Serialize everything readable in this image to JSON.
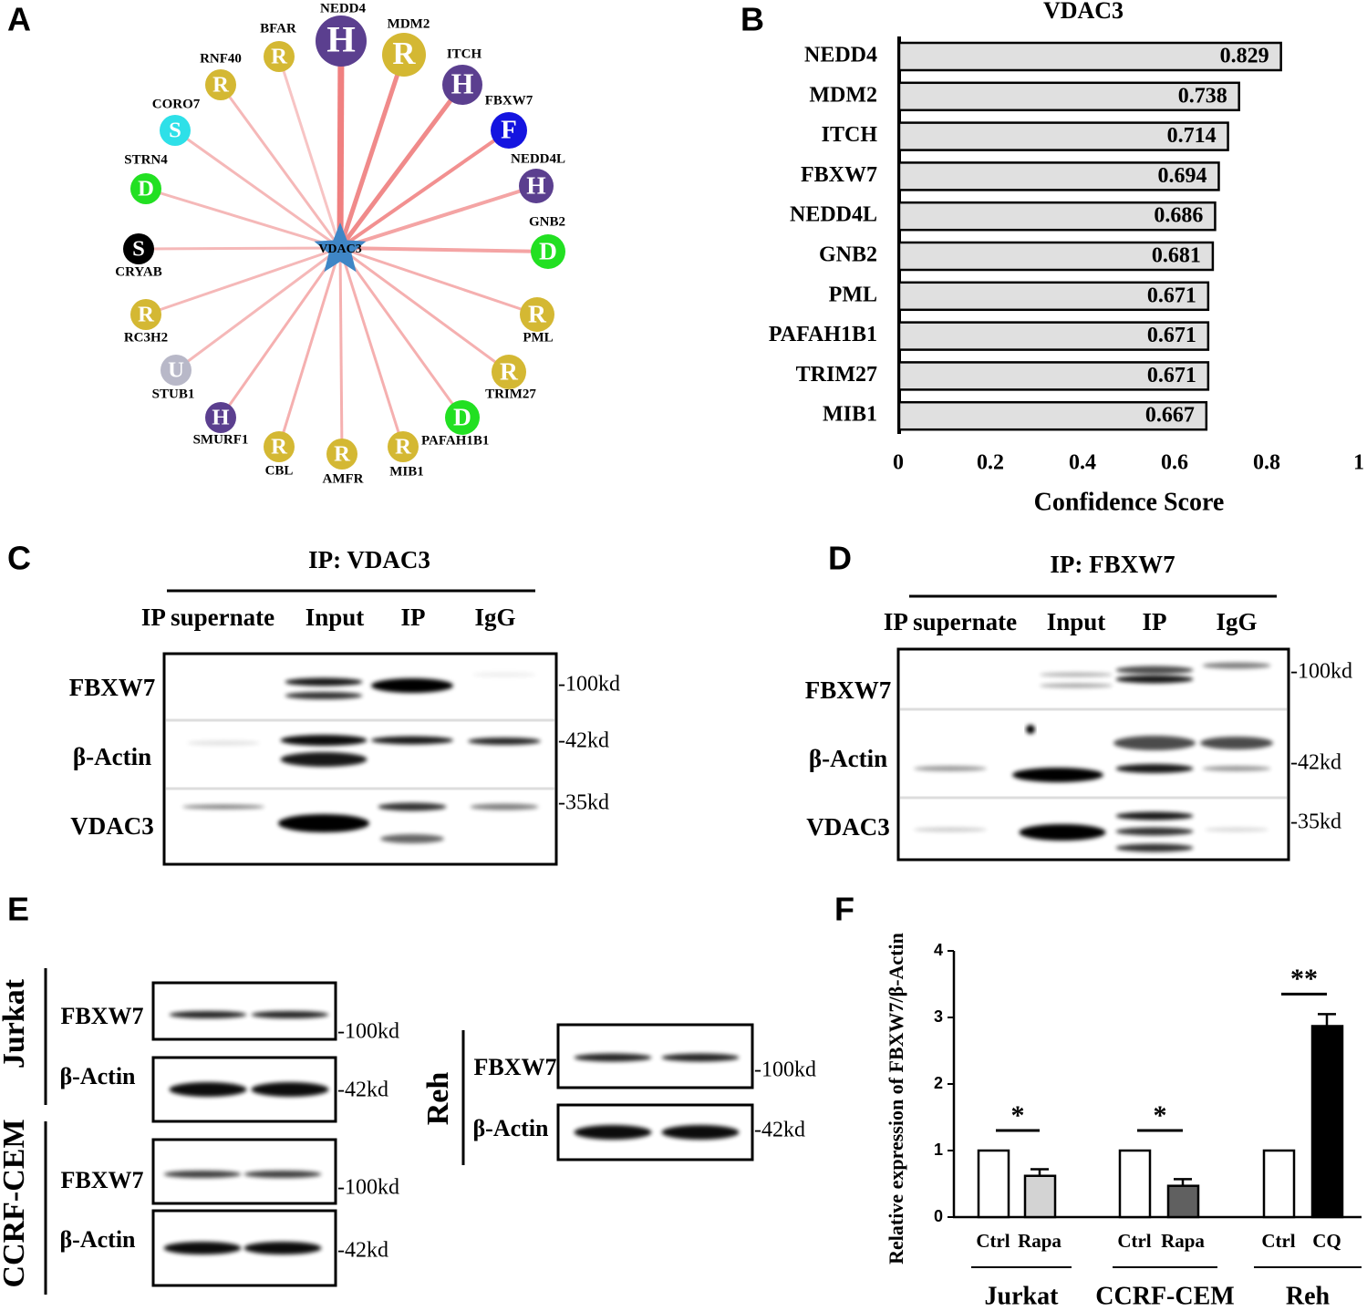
{
  "network": {
    "panel": "A",
    "center": "VDAC3",
    "nodes": [
      {
        "name": "NEDD4",
        "letter": "H",
        "color": "#5b3f8f"
      },
      {
        "name": "MDM2",
        "letter": "R",
        "color": "#d4b833"
      },
      {
        "name": "ITCH",
        "letter": "H",
        "color": "#5b3f8f"
      },
      {
        "name": "FBXW7",
        "letter": "F",
        "color": "#1414e0"
      },
      {
        "name": "NEDD4L",
        "letter": "H",
        "color": "#5b3f8f"
      },
      {
        "name": "GNB2",
        "letter": "D",
        "color": "#22e022"
      },
      {
        "name": "PML",
        "letter": "R",
        "color": "#d4b833"
      },
      {
        "name": "TRIM27",
        "letter": "R",
        "color": "#d4b833"
      },
      {
        "name": "PAFAH1B1",
        "letter": "D",
        "color": "#22e022"
      },
      {
        "name": "MIB1",
        "letter": "R",
        "color": "#d4b833"
      },
      {
        "name": "AMFR",
        "letter": "R",
        "color": "#d4b833"
      },
      {
        "name": "CBL",
        "letter": "R",
        "color": "#d4b833"
      },
      {
        "name": "SMURF1",
        "letter": "H",
        "color": "#5b3f8f"
      },
      {
        "name": "STUB1",
        "letter": "U",
        "color": "#b8b8c8"
      },
      {
        "name": "RC3H2",
        "letter": "R",
        "color": "#d4b833"
      },
      {
        "name": "CRYAB",
        "letter": "S",
        "color": "#000000"
      },
      {
        "name": "STRN4",
        "letter": "D",
        "color": "#22e022"
      },
      {
        "name": "CORO7",
        "letter": "S",
        "color": "#2ee0e8"
      },
      {
        "name": "RNF40",
        "letter": "R",
        "color": "#d4b833"
      },
      {
        "name": "BFAR",
        "letter": "R",
        "color": "#d4b833"
      }
    ]
  },
  "chart_data": [
    {
      "type": "barh",
      "panel": "B",
      "title": "VDAC3",
      "xlabel": "Confidence Score",
      "categories": [
        "NEDD4",
        "MDM2",
        "ITCH",
        "FBXW7",
        "NEDD4L",
        "GNB2",
        "PML",
        "PAFAH1B1",
        "TRIM27",
        "MIB1"
      ],
      "values": [
        0.829,
        0.738,
        0.714,
        0.694,
        0.686,
        0.681,
        0.671,
        0.671,
        0.671,
        0.667
      ],
      "color": "#e0e0e0",
      "xlim": [
        0,
        1
      ],
      "xticks": [
        0,
        0.2,
        0.4,
        0.6,
        0.8,
        1
      ]
    },
    {
      "type": "groupbar",
      "panel": "F",
      "ylabel": "Relative expression of FBXW7/β-Actin",
      "ylim": [
        0,
        4
      ],
      "yticks": [
        0,
        1,
        2,
        3,
        4
      ],
      "groups": [
        {
          "name": "Jurkat",
          "categories": [
            "Ctrl",
            "Rapa"
          ],
          "values": [
            1,
            0.62
          ],
          "errors": [
            null,
            0.1
          ],
          "colors": [
            "#ffffff",
            "#d3d3d3"
          ],
          "significance": "*"
        },
        {
          "name": "CCRF-CEM",
          "categories": [
            "Ctrl",
            "Rapa"
          ],
          "values": [
            1,
            0.47
          ],
          "errors": [
            null,
            0.1
          ],
          "colors": [
            "#ffffff",
            "#606060"
          ],
          "significance": "*"
        },
        {
          "name": "Reh",
          "categories": [
            "Ctrl",
            "CQ"
          ],
          "values": [
            1,
            2.87
          ],
          "errors": [
            null,
            0.18
          ],
          "colors": [
            "#ffffff",
            "#000000"
          ],
          "significance": "**"
        }
      ]
    }
  ],
  "blots": {
    "C": {
      "panel": "C",
      "title": "IP: VDAC3",
      "columns": [
        "IP supernate",
        "Input",
        "IP",
        "IgG"
      ],
      "rows": [
        "FBXW7",
        "β-Actin",
        "VDAC3"
      ],
      "markers": [
        "-100kd",
        "-42kd",
        "-35kd"
      ]
    },
    "D": {
      "panel": "D",
      "title": "IP: FBXW7",
      "columns": [
        "IP supernate",
        "Input",
        "IP",
        "IgG"
      ],
      "rows": [
        "FBXW7",
        "β-Actin",
        "VDAC3"
      ],
      "markers": [
        "-100kd",
        "-42kd",
        "-35kd"
      ]
    },
    "E": {
      "panel": "E",
      "groups": [
        {
          "name": "Jurkat",
          "rows": [
            "FBXW7",
            "β-Actin"
          ],
          "markers": [
            "-100kd",
            "-42kd"
          ]
        },
        {
          "name": "CCRF-CEM",
          "rows": [
            "FBXW7",
            "β-Actin"
          ],
          "markers": [
            "-100kd",
            "-42kd"
          ]
        },
        {
          "name": "Reh",
          "rows": [
            "FBXW7",
            "β-Actin"
          ],
          "markers": [
            "-100kd",
            "-42kd"
          ]
        }
      ]
    }
  }
}
